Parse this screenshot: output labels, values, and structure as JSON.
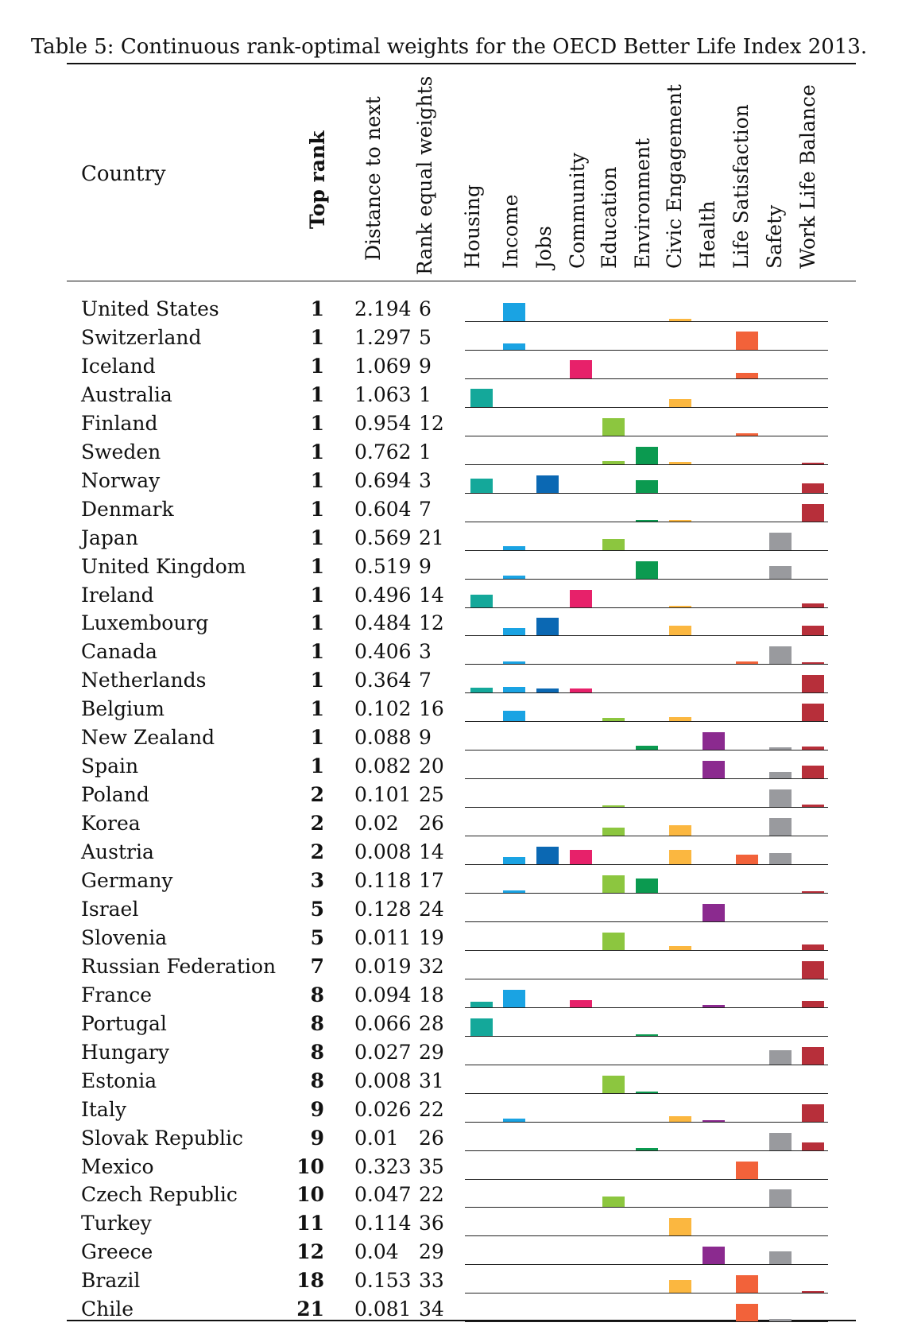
{
  "caption": "Table 5: Continuous rank-optimal weights for the OECD Better Life Index 2013.",
  "headers": {
    "country": "Country",
    "top_rank": "Top rank",
    "distance": "Distance to next",
    "rank_equal": "Rank equal weights",
    "dimensions": [
      "Housing",
      "Income",
      "Jobs",
      "Community",
      "Education",
      "Environment",
      "Civic Engagement",
      "Health",
      "Life Satisfaction",
      "Safety",
      "Work Life Balance"
    ]
  },
  "dimension_colors": [
    "#14a89a",
    "#1aa3e3",
    "#0b68b3",
    "#e7216a",
    "#8cc63f",
    "#0b9a50",
    "#fbb740",
    "#8b2a8f",
    "#f2623a",
    "#999a9e",
    "#b72f3a"
  ],
  "rows": [
    {
      "country": "United States",
      "top_rank": "1",
      "distance": "2.194",
      "rank_equal": "6",
      "weights": [
        0,
        0.9,
        0,
        0,
        0,
        0,
        0.1,
        0,
        0,
        0,
        0
      ]
    },
    {
      "country": "Switzerland",
      "top_rank": "1",
      "distance": "1.297",
      "rank_equal": "5",
      "weights": [
        0,
        0.3,
        0,
        0,
        0,
        0,
        0,
        0,
        0.9,
        0,
        0
      ]
    },
    {
      "country": "Iceland",
      "top_rank": "1",
      "distance": "1.069",
      "rank_equal": "9",
      "weights": [
        0,
        0,
        0,
        0.9,
        0,
        0,
        0,
        0,
        0.25,
        0,
        0
      ]
    },
    {
      "country": "Australia",
      "top_rank": "1",
      "distance": "1.063",
      "rank_equal": "1",
      "weights": [
        0.9,
        0,
        0,
        0,
        0,
        0,
        0.4,
        0,
        0,
        0,
        0
      ]
    },
    {
      "country": "Finland",
      "top_rank": "1",
      "distance": "0.954",
      "rank_equal": "12",
      "weights": [
        0,
        0,
        0,
        0,
        0.85,
        0,
        0,
        0,
        0.1,
        0,
        0
      ]
    },
    {
      "country": "Sweden",
      "top_rank": "1",
      "distance": "0.762",
      "rank_equal": "1",
      "weights": [
        0,
        0,
        0,
        0,
        0.15,
        0.85,
        0.12,
        0,
        0,
        0,
        0.08
      ]
    },
    {
      "country": "Norway",
      "top_rank": "1",
      "distance": "0.694",
      "rank_equal": "3",
      "weights": [
        0.7,
        0,
        0.85,
        0,
        0,
        0.6,
        0,
        0,
        0,
        0,
        0.45
      ]
    },
    {
      "country": "Denmark",
      "top_rank": "1",
      "distance": "0.604",
      "rank_equal": "7",
      "weights": [
        0,
        0,
        0,
        0,
        0,
        0.06,
        0.08,
        0,
        0,
        0,
        0.85
      ]
    },
    {
      "country": "Japan",
      "top_rank": "1",
      "distance": "0.569",
      "rank_equal": "21",
      "weights": [
        0,
        0.2,
        0,
        0,
        0.55,
        0,
        0,
        0,
        0,
        0.85,
        0
      ]
    },
    {
      "country": "United Kingdom",
      "top_rank": "1",
      "distance": "0.519",
      "rank_equal": "9",
      "weights": [
        0,
        0.15,
        0,
        0,
        0,
        0.85,
        0,
        0,
        0,
        0.6,
        0
      ]
    },
    {
      "country": "Ireland",
      "top_rank": "1",
      "distance": "0.496",
      "rank_equal": "14",
      "weights": [
        0.6,
        0,
        0,
        0.85,
        0,
        0,
        0.08,
        0,
        0,
        0,
        0.2
      ]
    },
    {
      "country": "Luxembourg",
      "top_rank": "1",
      "distance": "0.484",
      "rank_equal": "12",
      "weights": [
        0,
        0.35,
        0.85,
        0,
        0,
        0,
        0.45,
        0,
        0,
        0,
        0.45
      ]
    },
    {
      "country": "Canada",
      "top_rank": "1",
      "distance": "0.406",
      "rank_equal": "3",
      "weights": [
        0,
        0.1,
        0,
        0,
        0,
        0,
        0,
        0,
        0.12,
        0.85,
        0.05
      ]
    },
    {
      "country": "Netherlands",
      "top_rank": "1",
      "distance": "0.364",
      "rank_equal": "7",
      "weights": [
        0.22,
        0.25,
        0.2,
        0.18,
        0,
        0,
        0,
        0,
        0,
        0,
        0.85
      ]
    },
    {
      "country": "Belgium",
      "top_rank": "1",
      "distance": "0.102",
      "rank_equal": "16",
      "weights": [
        0,
        0.5,
        0,
        0,
        0.15,
        0,
        0.2,
        0,
        0,
        0,
        0.85
      ]
    },
    {
      "country": "New Zealand",
      "top_rank": "1",
      "distance": "0.088",
      "rank_equal": "9",
      "weights": [
        0,
        0,
        0,
        0,
        0,
        0.18,
        0,
        0.85,
        0,
        0.12,
        0.15
      ]
    },
    {
      "country": "Spain",
      "top_rank": "1",
      "distance": "0.082",
      "rank_equal": "20",
      "weights": [
        0,
        0,
        0,
        0,
        0,
        0,
        0,
        0.85,
        0,
        0.3,
        0.6
      ]
    },
    {
      "country": "Poland",
      "top_rank": "2",
      "distance": "0.101",
      "rank_equal": "25",
      "weights": [
        0,
        0,
        0,
        0,
        0.05,
        0,
        0,
        0,
        0,
        0.85,
        0.12
      ]
    },
    {
      "country": "Korea",
      "top_rank": "2",
      "distance": "0.02",
      "rank_equal": "26",
      "weights": [
        0,
        0,
        0,
        0,
        0.4,
        0,
        0.5,
        0,
        0,
        0.85,
        0
      ]
    },
    {
      "country": "Austria",
      "top_rank": "2",
      "distance": "0.008",
      "rank_equal": "14",
      "weights": [
        0,
        0.35,
        0.85,
        0.7,
        0,
        0,
        0.7,
        0,
        0.45,
        0.55,
        0
      ]
    },
    {
      "country": "Germany",
      "top_rank": "3",
      "distance": "0.118",
      "rank_equal": "17",
      "weights": [
        0,
        0.12,
        0,
        0,
        0.85,
        0.7,
        0,
        0,
        0,
        0,
        0.04
      ]
    },
    {
      "country": "Israel",
      "top_rank": "5",
      "distance": "0.128",
      "rank_equal": "24",
      "weights": [
        0,
        0,
        0,
        0,
        0,
        0,
        0,
        0.85,
        0,
        0,
        0
      ]
    },
    {
      "country": "Slovenia",
      "top_rank": "5",
      "distance": "0.011",
      "rank_equal": "19",
      "weights": [
        0,
        0,
        0,
        0,
        0.85,
        0,
        0.2,
        0,
        0,
        0,
        0.25
      ]
    },
    {
      "country": "Russian Federation",
      "top_rank": "7",
      "distance": "0.019",
      "rank_equal": "32",
      "weights": [
        0,
        0,
        0,
        0,
        0,
        0,
        0,
        0,
        0,
        0,
        0.85
      ]
    },
    {
      "country": "France",
      "top_rank": "8",
      "distance": "0.094",
      "rank_equal": "18",
      "weights": [
        0.25,
        0.85,
        0,
        0.35,
        0,
        0,
        0,
        0.12,
        0,
        0,
        0.3
      ]
    },
    {
      "country": "Portugal",
      "top_rank": "8",
      "distance": "0.066",
      "rank_equal": "28",
      "weights": [
        0.85,
        0,
        0,
        0,
        0,
        0.06,
        0,
        0,
        0,
        0,
        0
      ]
    },
    {
      "country": "Hungary",
      "top_rank": "8",
      "distance": "0.027",
      "rank_equal": "29",
      "weights": [
        0,
        0,
        0,
        0,
        0,
        0,
        0,
        0,
        0,
        0.7,
        0.85
      ]
    },
    {
      "country": "Estonia",
      "top_rank": "8",
      "distance": "0.008",
      "rank_equal": "31",
      "weights": [
        0,
        0,
        0,
        0,
        0.85,
        0.05,
        0,
        0,
        0,
        0,
        0
      ]
    },
    {
      "country": "Italy",
      "top_rank": "9",
      "distance": "0.026",
      "rank_equal": "22",
      "weights": [
        0,
        0.15,
        0,
        0,
        0,
        0,
        0.25,
        0.04,
        0,
        0,
        0.85
      ]
    },
    {
      "country": "Slovak Republic",
      "top_rank": "9",
      "distance": "0.01",
      "rank_equal": "26",
      "weights": [
        0,
        0,
        0,
        0,
        0,
        0.1,
        0,
        0,
        0,
        0.85,
        0.4
      ]
    },
    {
      "country": "Mexico",
      "top_rank": "10",
      "distance": "0.323",
      "rank_equal": "35",
      "weights": [
        0,
        0,
        0,
        0,
        0,
        0,
        0,
        0,
        0.85,
        0,
        0
      ]
    },
    {
      "country": "Czech Republic",
      "top_rank": "10",
      "distance": "0.047",
      "rank_equal": "22",
      "weights": [
        0,
        0,
        0,
        0,
        0.5,
        0,
        0,
        0,
        0,
        0.85,
        0
      ]
    },
    {
      "country": "Turkey",
      "top_rank": "11",
      "distance": "0.114",
      "rank_equal": "36",
      "weights": [
        0,
        0,
        0,
        0,
        0,
        0,
        0.85,
        0,
        0,
        0,
        0
      ]
    },
    {
      "country": "Greece",
      "top_rank": "12",
      "distance": "0.04",
      "rank_equal": "29",
      "weights": [
        0,
        0,
        0,
        0,
        0,
        0,
        0,
        0.85,
        0,
        0.6,
        0
      ]
    },
    {
      "country": "Brazil",
      "top_rank": "18",
      "distance": "0.153",
      "rank_equal": "33",
      "weights": [
        0,
        0,
        0,
        0,
        0,
        0,
        0.6,
        0,
        0.85,
        0,
        0.04
      ]
    },
    {
      "country": "Chile",
      "top_rank": "21",
      "distance": "0.081",
      "rank_equal": "34",
      "weights": [
        0,
        0,
        0,
        0,
        0,
        0,
        0,
        0,
        0.85,
        0.12,
        0
      ]
    }
  ]
}
